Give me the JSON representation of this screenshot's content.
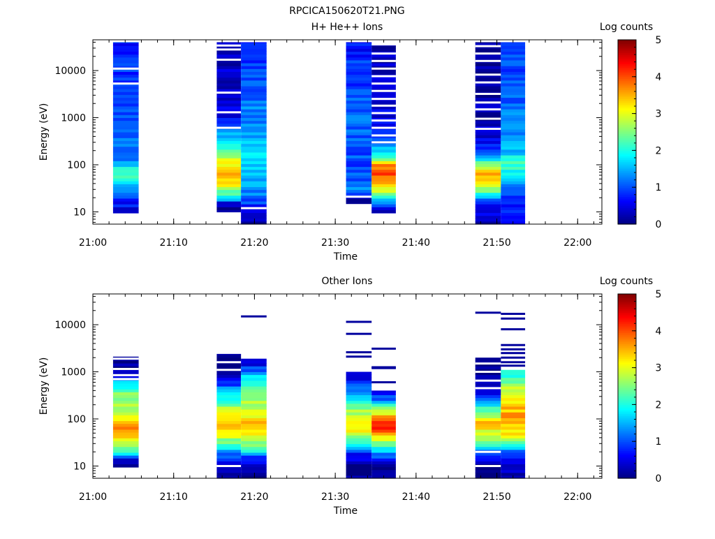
{
  "page_title": "RPCICA150620T21.PNG",
  "chart_data": [
    {
      "type": "heatmap",
      "title": "H+ He++ Ions",
      "xlabel": "Time",
      "ylabel": "Energy (eV)",
      "x_range": [
        "21:00",
        "22:03"
      ],
      "x_ticks": [
        "21:00",
        "21:10",
        "21:20",
        "21:30",
        "21:40",
        "21:50",
        "22:00"
      ],
      "y_scale": "log",
      "y_range": [
        5.5,
        45000
      ],
      "y_ticks": [
        "10",
        "100",
        "1000",
        "10000"
      ],
      "colorbar": {
        "label": "Log counts",
        "range": [
          0,
          5
        ],
        "ticks": [
          "0",
          "1",
          "2",
          "3",
          "4",
          "5"
        ]
      },
      "columns": [
        {
          "start": "21:02:30",
          "end": "21:05:40",
          "emin": 9.5,
          "emax": 40000,
          "profile": [
            [
              5.5,
              0.4
            ],
            [
              10,
              0.5
            ],
            [
              20,
              0.8
            ],
            [
              30,
              1.3
            ],
            [
              50,
              2.0
            ],
            [
              80,
              2.0
            ],
            [
              130,
              1.2
            ],
            [
              300,
              1.1
            ],
            [
              1000,
              1.0
            ],
            [
              10000,
              0.9
            ],
            [
              40000,
              0.8
            ]
          ],
          "gaps": [
            5300,
            11000
          ]
        },
        {
          "start": "21:15:20",
          "end": "21:18:20",
          "emin": 10,
          "emax": 40000,
          "profile": [
            [
              10,
              0.0
            ],
            [
              15,
              0.3
            ],
            [
              20,
              1.8
            ],
            [
              40,
              3.3
            ],
            [
              60,
              3.6
            ],
            [
              100,
              3.2
            ],
            [
              200,
              2.3
            ],
            [
              400,
              1.5
            ],
            [
              1000,
              0.6
            ],
            [
              5000,
              0.4
            ],
            [
              40000,
              0.3
            ]
          ],
          "gaps": [
            17000,
            28000,
            34000,
            3400,
            1300,
            610
          ]
        },
        {
          "start": "21:18:20",
          "end": "21:21:30",
          "emin": 5.5,
          "emax": 40000,
          "profile": [
            [
              5.5,
              0.3
            ],
            [
              10,
              0.5
            ],
            [
              15,
              0.9
            ],
            [
              30,
              1.3
            ],
            [
              60,
              1.5
            ],
            [
              150,
              1.7
            ],
            [
              400,
              1.5
            ],
            [
              1000,
              1.3
            ],
            [
              5000,
              1.0
            ],
            [
              40000,
              0.8
            ]
          ],
          "gaps": [
            12
          ]
        },
        {
          "start": "21:31:20",
          "end": "21:34:30",
          "emin": 15,
          "emax": 40000,
          "profile": [
            [
              15,
              0.0
            ],
            [
              20,
              0.3
            ],
            [
              30,
              1.2
            ],
            [
              60,
              1.0
            ],
            [
              200,
              1.0
            ],
            [
              1000,
              1.1
            ],
            [
              10000,
              0.9
            ],
            [
              40000,
              0.7
            ]
          ],
          "gaps": [
            21
          ]
        },
        {
          "start": "21:34:30",
          "end": "21:37:30",
          "emin": 9.5,
          "emax": 34000,
          "profile": [
            [
              9.5,
              0.3
            ],
            [
              15,
              1.0
            ],
            [
              20,
              2.2
            ],
            [
              40,
              3.5
            ],
            [
              70,
              4.0
            ],
            [
              100,
              3.7
            ],
            [
              150,
              2.2
            ],
            [
              300,
              1.0
            ],
            [
              1000,
              0.5
            ],
            [
              34000,
              0.3
            ]
          ],
          "gaps": [
            23000,
            16000,
            11000,
            7600,
            5300,
            3700,
            2500,
            1800,
            1250,
            870,
            610,
            420,
            300
          ]
        },
        {
          "start": "21:47:20",
          "end": "21:50:30",
          "emin": 5.5,
          "emax": 40000,
          "profile": [
            [
              5.5,
              0.1
            ],
            [
              15,
              0.8
            ],
            [
              20,
              1.5
            ],
            [
              40,
              3.2
            ],
            [
              70,
              3.4
            ],
            [
              100,
              2.8
            ],
            [
              150,
              1.5
            ],
            [
              300,
              0.6
            ],
            [
              1000,
              0.2
            ],
            [
              40000,
              0.1
            ]
          ],
          "gaps": [
            33000,
            23000,
            16000,
            8200,
            5600,
            3200,
            2100,
            1500,
            950,
            580
          ]
        },
        {
          "start": "21:50:30",
          "end": "21:53:30",
          "emin": 5.5,
          "emax": 40000,
          "profile": [
            [
              5.5,
              0.5
            ],
            [
              20,
              0.8
            ],
            [
              50,
              1.6
            ],
            [
              100,
              2.2
            ],
            [
              200,
              1.6
            ],
            [
              500,
              1.4
            ],
            [
              1000,
              1.2
            ],
            [
              10000,
              1.0
            ],
            [
              40000,
              0.9
            ]
          ],
          "gaps": []
        }
      ]
    },
    {
      "type": "heatmap",
      "title": "Other Ions",
      "xlabel": "Time",
      "ylabel": "Energy (eV)",
      "x_range": [
        "21:00",
        "22:03"
      ],
      "x_ticks": [
        "21:00",
        "21:10",
        "21:20",
        "21:30",
        "21:40",
        "21:50",
        "22:00"
      ],
      "y_scale": "log",
      "y_range": [
        5.5,
        45000
      ],
      "y_ticks": [
        "10",
        "100",
        "1000",
        "10000"
      ],
      "colorbar": {
        "label": "Log counts",
        "range": [
          0,
          5
        ],
        "ticks": [
          "0",
          "1",
          "2",
          "3",
          "4",
          "5"
        ]
      },
      "columns": [
        {
          "start": "21:02:30",
          "end": "21:05:40",
          "emin": 9.5,
          "emax": 2100,
          "profile": [
            [
              9.5,
              0.0
            ],
            [
              14,
              0.2
            ],
            [
              16,
              1.4
            ],
            [
              20,
              2.0
            ],
            [
              30,
              2.9
            ],
            [
              50,
              3.7
            ],
            [
              80,
              3.5
            ],
            [
              150,
              2.9
            ],
            [
              300,
              2.6
            ],
            [
              600,
              1.7
            ],
            [
              1000,
              0.1
            ],
            [
              2100,
              0.0
            ]
          ],
          "gaps": [
            1900,
            1150,
            850,
            700
          ]
        },
        {
          "start": "21:15:20",
          "end": "21:18:20",
          "emin": 5.5,
          "emax": 2400,
          "profile": [
            [
              5.5,
              0.0
            ],
            [
              10,
              0.2
            ],
            [
              20,
              1.3
            ],
            [
              30,
              2.3
            ],
            [
              60,
              3.4
            ],
            [
              80,
              3.6
            ],
            [
              150,
              2.8
            ],
            [
              300,
              2.0
            ],
            [
              600,
              0.8
            ],
            [
              1000,
              0.1
            ],
            [
              2400,
              0.0
            ]
          ],
          "gaps": [
            10,
            1600,
            1100
          ]
        },
        {
          "start": "21:18:20",
          "end": "21:21:30",
          "emin": 5.5,
          "emax": 1900,
          "profile": [
            [
              5.5,
              0.0
            ],
            [
              10,
              0.2
            ],
            [
              15,
              0.8
            ],
            [
              20,
              1.8
            ],
            [
              40,
              3.1
            ],
            [
              80,
              3.4
            ],
            [
              150,
              3.0
            ],
            [
              300,
              2.4
            ],
            [
              700,
              2.0
            ],
            [
              1000,
              1.3
            ],
            [
              1900,
              0.1
            ]
          ],
          "gaps": []
        },
        {
          "start": "21:31:20",
          "end": "21:34:30",
          "emin": 5.5,
          "emax": 1000,
          "profile": [
            [
              5.5,
              0.0
            ],
            [
              10,
              0.1
            ],
            [
              20,
              0.8
            ],
            [
              30,
              2.0
            ],
            [
              50,
              3.0
            ],
            [
              100,
              3.2
            ],
            [
              200,
              2.2
            ],
            [
              400,
              1.2
            ],
            [
              1000,
              0.3
            ]
          ],
          "gaps": []
        },
        {
          "start": "21:34:30",
          "end": "21:37:30",
          "emin": 5.5,
          "emax": 400,
          "profile": [
            [
              5.5,
              0.0
            ],
            [
              10,
              0.1
            ],
            [
              20,
              1.4
            ],
            [
              40,
              3.2
            ],
            [
              70,
              4.2
            ],
            [
              100,
              4.0
            ],
            [
              150,
              2.8
            ],
            [
              250,
              1.3
            ],
            [
              400,
              0.4
            ]
          ],
          "gaps": []
        },
        {
          "start": "21:47:20",
          "end": "21:50:30",
          "emin": 5.5,
          "emax": 2000,
          "profile": [
            [
              5.5,
              0.0
            ],
            [
              10,
              0.0
            ],
            [
              22,
              1.2
            ],
            [
              30,
              2.2
            ],
            [
              50,
              2.8
            ],
            [
              80,
              3.4
            ],
            [
              150,
              2.4
            ],
            [
              300,
              0.8
            ],
            [
              1000,
              0.0
            ],
            [
              2000,
              0.0
            ]
          ],
          "gaps": [
            10,
            20,
            1500,
            1000,
            650,
            450
          ]
        },
        {
          "start": "21:50:30",
          "end": "21:53:30",
          "emin": 5.5,
          "emax": 1100,
          "profile": [
            [
              5.5,
              0.0
            ],
            [
              10,
              0.4
            ],
            [
              15,
              0.7
            ],
            [
              20,
              1.0
            ],
            [
              40,
              3.1
            ],
            [
              100,
              3.6
            ],
            [
              300,
              3.2
            ],
            [
              600,
              2.4
            ],
            [
              1100,
              1.8
            ]
          ],
          "gaps": []
        }
      ],
      "lines": [
        {
          "start": "21:18:20",
          "end": "21:21:30",
          "energy": 15000
        },
        {
          "start": "21:31:20",
          "end": "21:34:30",
          "energy": 11500
        },
        {
          "start": "21:31:20",
          "end": "21:34:30",
          "energy": 6400
        },
        {
          "start": "21:31:20",
          "end": "21:34:30",
          "energy": 2600
        },
        {
          "start": "21:31:20",
          "end": "21:34:30",
          "energy": 2100
        },
        {
          "start": "21:34:30",
          "end": "21:37:30",
          "energy": 3100
        },
        {
          "start": "21:34:30",
          "end": "21:37:30",
          "energy": 1200
        },
        {
          "start": "21:34:30",
          "end": "21:37:30",
          "energy": 1250
        },
        {
          "start": "21:34:30",
          "end": "21:37:30",
          "energy": 600
        },
        {
          "start": "21:47:20",
          "end": "21:50:30",
          "energy": 18000
        },
        {
          "start": "21:50:30",
          "end": "21:53:30",
          "energy": 17000
        },
        {
          "start": "21:50:30",
          "end": "21:53:30",
          "energy": 13500
        },
        {
          "start": "21:50:30",
          "end": "21:53:30",
          "energy": 8000
        },
        {
          "start": "21:50:30",
          "end": "21:53:30",
          "energy": 3700
        },
        {
          "start": "21:50:30",
          "end": "21:53:30",
          "energy": 3000
        },
        {
          "start": "21:50:30",
          "end": "21:53:30",
          "energy": 2500
        },
        {
          "start": "21:50:30",
          "end": "21:53:30",
          "energy": 2000
        },
        {
          "start": "21:50:30",
          "end": "21:53:30",
          "energy": 1600
        },
        {
          "start": "21:50:30",
          "end": "21:53:30",
          "energy": 1350
        }
      ]
    }
  ]
}
